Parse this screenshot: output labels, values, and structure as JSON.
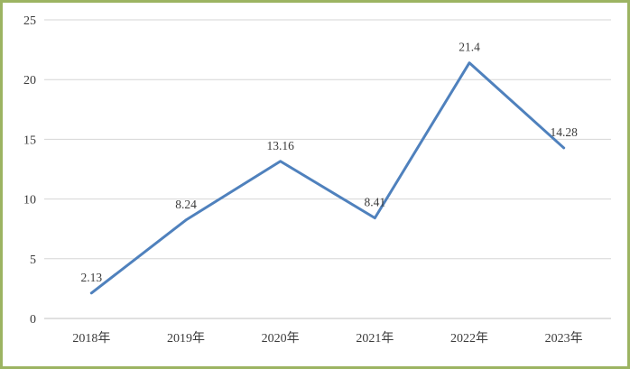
{
  "chart_data": {
    "type": "line",
    "title": "",
    "xlabel": "",
    "ylabel": "",
    "categories": [
      "2018年",
      "2019年",
      "2020年",
      "2021年",
      "2022年",
      "2023年"
    ],
    "values": [
      2.13,
      8.24,
      13.16,
      8.41,
      21.4,
      14.28
    ],
    "point_labels": [
      "2.13",
      "8.24",
      "13.16",
      "8.41",
      "21.4",
      "14.28"
    ],
    "y_ticks": [
      0,
      5,
      10,
      15,
      20,
      25
    ],
    "y_tick_labels": [
      "0",
      "5",
      "10",
      "15",
      "20",
      "25"
    ],
    "ylim": [
      0,
      25
    ],
    "grid": "horizontal",
    "legend_position": "none",
    "colors": {
      "line": "#4F81BD",
      "gridline": "#D6D6D6",
      "axis_line": "#C0C0C0",
      "border": "#9CB462",
      "text": "#3B3B3B",
      "background": "#FFFFFF"
    }
  }
}
